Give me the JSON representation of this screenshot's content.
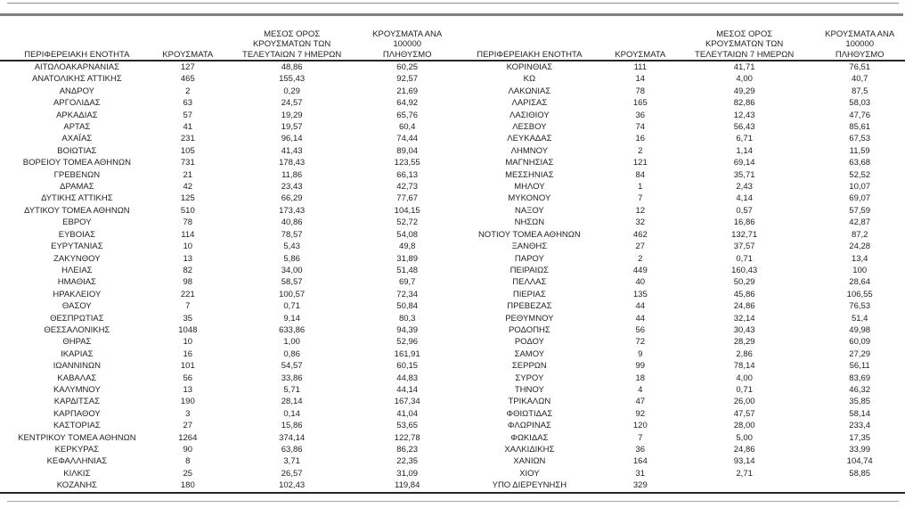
{
  "document": {
    "type": "cases-by-regional-unit-table",
    "language": "Greek"
  },
  "colors": {
    "background": "#ffffff",
    "text": "#1f1f1f",
    "top_thin_rule": "#8c8c8c",
    "top_thick_rule": "#7f7f7f",
    "header_rule": "#262626",
    "bottom_dark_rule": "#262626",
    "bottom_thin_rule": "#a6a6a6"
  },
  "table": {
    "headers": {
      "region": "ΠΕΡΙΦΕΡΕΙΑΚΗ ΕΝΟΤΗΤΑ",
      "cases": "ΚΡΟΥΣΜΑΤΑ",
      "avg7": "ΜΕΣΟΣ ΟΡΟΣ\nΚΡΟΥΣΜΑΤΩΝ ΤΩΝ\nΤΕΛΕΥΤΑΙΩΝ 7 ΗΜΕΡΩΝ",
      "per100k": "ΚΡΟΥΣΜΑΤΑ ΑΝΑ 100000\nΠΛΗΘΥΣΜΟ"
    },
    "left_rows": [
      [
        "ΑΙΤΩΛΟΑΚΑΡΝΑΝΙΑΣ",
        "127",
        "48,86",
        "60,25"
      ],
      [
        "ΑΝΑΤΟΛΙΚΗΣ ΑΤΤΙΚΗΣ",
        "465",
        "155,43",
        "92,57"
      ],
      [
        "ΑΝΔΡΟΥ",
        "2",
        "0,29",
        "21,69"
      ],
      [
        "ΑΡΓΟΛΙΔΑΣ",
        "63",
        "24,57",
        "64,92"
      ],
      [
        "ΑΡΚΑΔΙΑΣ",
        "57",
        "19,29",
        "65,76"
      ],
      [
        "ΑΡΤΑΣ",
        "41",
        "19,57",
        "60,4"
      ],
      [
        "ΑΧΑΪΑΣ",
        "231",
        "96,14",
        "74,44"
      ],
      [
        "ΒΟΙΩΤΙΑΣ",
        "105",
        "41,43",
        "89,04"
      ],
      [
        "ΒΟΡΕΙΟΥ ΤΟΜΕΑ ΑΘΗΝΩΝ",
        "731",
        "178,43",
        "123,55"
      ],
      [
        "ΓΡΕΒΕΝΩΝ",
        "21",
        "11,86",
        "66,13"
      ],
      [
        "ΔΡΑΜΑΣ",
        "42",
        "23,43",
        "42,73"
      ],
      [
        "ΔΥΤΙΚΗΣ ΑΤΤΙΚΗΣ",
        "125",
        "66,29",
        "77,67"
      ],
      [
        "ΔΥΤΙΚΟΥ ΤΟΜΕΑ ΑΘΗΝΩΝ",
        "510",
        "173,43",
        "104,15"
      ],
      [
        "ΕΒΡΟΥ",
        "78",
        "40,86",
        "52,72"
      ],
      [
        "ΕΥΒΟΙΑΣ",
        "114",
        "78,57",
        "54,08"
      ],
      [
        "ΕΥΡΥΤΑΝΙΑΣ",
        "10",
        "5,43",
        "49,8"
      ],
      [
        "ΖΑΚΥΝΘΟΥ",
        "13",
        "5,86",
        "31,89"
      ],
      [
        "ΗΛΕΙΑΣ",
        "82",
        "34,00",
        "51,48"
      ],
      [
        "ΗΜΑΘΙΑΣ",
        "98",
        "58,57",
        "69,7"
      ],
      [
        "ΗΡΑΚΛΕΙΟΥ",
        "221",
        "100,57",
        "72,34"
      ],
      [
        "ΘΑΣΟΥ",
        "7",
        "0,71",
        "50,84"
      ],
      [
        "ΘΕΣΠΡΩΤΙΑΣ",
        "35",
        "9,14",
        "80,3"
      ],
      [
        "ΘΕΣΣΑΛΟΝΙΚΗΣ",
        "1048",
        "633,86",
        "94,39"
      ],
      [
        "ΘΗΡΑΣ",
        "10",
        "1,00",
        "52,96"
      ],
      [
        "ΙΚΑΡΙΑΣ",
        "16",
        "0,86",
        "161,91"
      ],
      [
        "ΙΩΑΝΝΙΝΩΝ",
        "101",
        "54,57",
        "60,15"
      ],
      [
        "ΚΑΒΑΛΑΣ",
        "56",
        "33,86",
        "44,83"
      ],
      [
        "ΚΑΛΥΜΝΟΥ",
        "13",
        "5,71",
        "44,14"
      ],
      [
        "ΚΑΡΔΙΤΣΑΣ",
        "190",
        "28,14",
        "167,34"
      ],
      [
        "ΚΑΡΠΑΘΟΥ",
        "3",
        "0,14",
        "41,04"
      ],
      [
        "ΚΑΣΤΟΡΙΑΣ",
        "27",
        "15,86",
        "53,65"
      ],
      [
        "ΚΕΝΤΡΙΚΟΥ ΤΟΜΕΑ ΑΘΗΝΩΝ",
        "1264",
        "374,14",
        "122,78"
      ],
      [
        "ΚΕΡΚΥΡΑΣ",
        "90",
        "63,86",
        "86,23"
      ],
      [
        "ΚΕΦΑΛΛΗΝΙΑΣ",
        "8",
        "3,71",
        "22,35"
      ],
      [
        "ΚΙΛΚΙΣ",
        "25",
        "26,57",
        "31,09"
      ],
      [
        "ΚΟΖΑΝΗΣ",
        "180",
        "102,43",
        "119,84"
      ]
    ],
    "right_rows": [
      [
        "ΚΟΡΙΝΘΙΑΣ",
        "111",
        "41,71",
        "76,51"
      ],
      [
        "ΚΩ",
        "14",
        "4,00",
        "40,7"
      ],
      [
        "ΛΑΚΩΝΙΑΣ",
        "78",
        "49,29",
        "87,5"
      ],
      [
        "ΛΑΡΙΣΑΣ",
        "165",
        "82,86",
        "58,03"
      ],
      [
        "ΛΑΣΙΘΙΟΥ",
        "36",
        "12,43",
        "47,76"
      ],
      [
        "ΛΕΣΒΟΥ",
        "74",
        "56,43",
        "85,61"
      ],
      [
        "ΛΕΥΚΑΔΑΣ",
        "16",
        "6,71",
        "67,53"
      ],
      [
        "ΛΗΜΝΟΥ",
        "2",
        "1,14",
        "11,59"
      ],
      [
        "ΜΑΓΝΗΣΙΑΣ",
        "121",
        "69,14",
        "63,68"
      ],
      [
        "ΜΕΣΣΗΝΙΑΣ",
        "84",
        "35,71",
        "52,52"
      ],
      [
        "ΜΗΛΟΥ",
        "1",
        "2,43",
        "10,07"
      ],
      [
        "ΜΥΚΟΝΟΥ",
        "7",
        "4,14",
        "69,07"
      ],
      [
        "ΝΑΞΟΥ",
        "12",
        "0,57",
        "57,59"
      ],
      [
        "ΝΗΣΩΝ",
        "32",
        "16,86",
        "42,87"
      ],
      [
        "ΝΟΤΙΟΥ ΤΟΜΕΑ ΑΘΗΝΩΝ",
        "462",
        "132,71",
        "87,2"
      ],
      [
        "ΞΑΝΘΗΣ",
        "27",
        "37,57",
        "24,28"
      ],
      [
        "ΠΑΡΟΥ",
        "2",
        "0,71",
        "13,4"
      ],
      [
        "ΠΕΙΡΑΙΩΣ",
        "449",
        "160,43",
        "100"
      ],
      [
        "ΠΕΛΛΑΣ",
        "40",
        "50,29",
        "28,64"
      ],
      [
        "ΠΙΕΡΙΑΣ",
        "135",
        "45,86",
        "106,55"
      ],
      [
        "ΠΡΕΒΕΖΑΣ",
        "44",
        "24,86",
        "76,53"
      ],
      [
        "ΡΕΘΥΜΝΟΥ",
        "44",
        "32,14",
        "51,4"
      ],
      [
        "ΡΟΔΟΠΗΣ",
        "56",
        "30,43",
        "49,98"
      ],
      [
        "ΡΟΔΟΥ",
        "72",
        "28,29",
        "60,09"
      ],
      [
        "ΣΑΜΟΥ",
        "9",
        "2,86",
        "27,29"
      ],
      [
        "ΣΕΡΡΩΝ",
        "99",
        "78,14",
        "56,11"
      ],
      [
        "ΣΥΡΟΥ",
        "18",
        "4,00",
        "83,69"
      ],
      [
        "ΤΗΝΟΥ",
        "4",
        "0,71",
        "46,32"
      ],
      [
        "ΤΡΙΚΑΛΩΝ",
        "47",
        "26,00",
        "35,85"
      ],
      [
        "ΦΘΙΩΤΙΔΑΣ",
        "92",
        "47,57",
        "58,14"
      ],
      [
        "ΦΛΩΡΙΝΑΣ",
        "120",
        "28,00",
        "233,4"
      ],
      [
        "ΦΩΚΙΔΑΣ",
        "7",
        "5,00",
        "17,35"
      ],
      [
        "ΧΑΛΚΙΔΙΚΗΣ",
        "36",
        "24,86",
        "33,99"
      ],
      [
        "ΧΑΝΙΩΝ",
        "164",
        "93,14",
        "104,74"
      ],
      [
        "ΧΙΟΥ",
        "31",
        "2,71",
        "58,85"
      ],
      [
        "ΥΠΟ ΔΙΕΡΕΥΝΗΣΗ",
        "329",
        "",
        ""
      ]
    ]
  }
}
